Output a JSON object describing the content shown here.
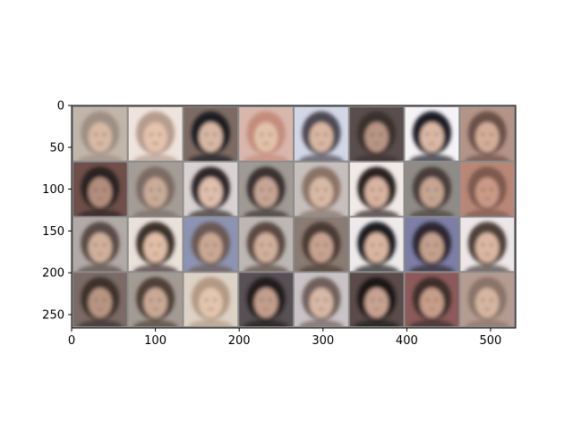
{
  "chart_data": {
    "type": "heatmap",
    "title": "",
    "xlabel": "",
    "ylabel": "",
    "xlim": [
      0,
      530
    ],
    "ylim": [
      266,
      0
    ],
    "grid": false,
    "legend": "none",
    "x_ticks": [
      0,
      100,
      200,
      300,
      400,
      500
    ],
    "y_ticks": [
      0,
      50,
      100,
      150,
      200,
      250
    ],
    "image_grid": {
      "rows": 4,
      "cols": 8,
      "tile_size": 64,
      "padding": 2,
      "separator_color": "#8c8c8c",
      "description": "grid of 32 generated face samples",
      "tiles": [
        {
          "bg": "#c2b5aa",
          "hair": "#9d8f84",
          "skin": "#d8b9a4"
        },
        {
          "bg": "#efe3dd",
          "hair": "#b59c8e",
          "skin": "#e5c3ad"
        },
        {
          "bg": "#7d6b63",
          "hair": "#1f1a22",
          "skin": "#d7b8a6"
        },
        {
          "bg": "#d8b6ab",
          "hair": "#c48c7c",
          "skin": "#e2c1ab"
        },
        {
          "bg": "#d3d6e6",
          "hair": "#4e4a55",
          "skin": "#d8b7a3"
        },
        {
          "bg": "#5a4d4d",
          "hair": "#3a302f",
          "skin": "#b89484"
        },
        {
          "bg": "#f4f2f4",
          "hair": "#1f1c26",
          "skin": "#dab8a5"
        },
        {
          "bg": "#b49488",
          "hair": "#6b5149",
          "skin": "#d4ad99"
        },
        {
          "bg": "#6f4f4a",
          "hair": "#2c2324",
          "skin": "#b28d7e"
        },
        {
          "bg": "#a59c96",
          "hair": "#7b6c64",
          "skin": "#c9ab99"
        },
        {
          "bg": "#d9d2d2",
          "hair": "#2d262b",
          "skin": "#dfbfae"
        },
        {
          "bg": "#9f9a93",
          "hair": "#3a3230",
          "skin": "#c6a594"
        },
        {
          "bg": "#c7bfbc",
          "hair": "#8a7366",
          "skin": "#d7b9a6"
        },
        {
          "bg": "#f1e9e6",
          "hair": "#2c2322",
          "skin": "#d8b3a0"
        },
        {
          "bg": "#8f8b86",
          "hair": "#4a3e3a",
          "skin": "#c6a593"
        },
        {
          "bg": "#b98778",
          "hair": "#7e5a4e",
          "skin": "#c99a86"
        },
        {
          "bg": "#b2aaa6",
          "hair": "#5a4c46",
          "skin": "#d0b09d"
        },
        {
          "bg": "#eae0da",
          "hair": "#3e302c",
          "skin": "#e0bea8"
        },
        {
          "bg": "#8d93b2",
          "hair": "#6b5a55",
          "skin": "#cba894"
        },
        {
          "bg": "#bdb7b3",
          "hair": "#5c4a42",
          "skin": "#d1b09c"
        },
        {
          "bg": "#8a7b73",
          "hair": "#4b3b35",
          "skin": "#c7a391"
        },
        {
          "bg": "#eeeaec",
          "hair": "#1e1a20",
          "skin": "#d9b6a2"
        },
        {
          "bg": "#7c7ea6",
          "hair": "#2e2830",
          "skin": "#c4a08e"
        },
        {
          "bg": "#ece6e8",
          "hair": "#4d3f3a",
          "skin": "#dbb7a3"
        },
        {
          "bg": "#7b6a66",
          "hair": "#3d302c",
          "skin": "#b79582"
        },
        {
          "bg": "#a39b93",
          "hair": "#4f4139",
          "skin": "#c9a996"
        },
        {
          "bg": "#ddd2c6",
          "hair": "#b39a84",
          "skin": "#e2c6b0"
        },
        {
          "bg": "#575054",
          "hair": "#231c1d",
          "skin": "#c29e8d"
        },
        {
          "bg": "#c9c3c6",
          "hair": "#6f605b",
          "skin": "#d8b8a6"
        },
        {
          "bg": "#5b4b4b",
          "hair": "#1f1819",
          "skin": "#c7a291"
        },
        {
          "bg": "#8c5a5a",
          "hair": "#3c2d2c",
          "skin": "#c79d8b"
        },
        {
          "bg": "#b59c92",
          "hair": "#8a7369",
          "skin": "#d6b5a2"
        }
      ]
    }
  }
}
